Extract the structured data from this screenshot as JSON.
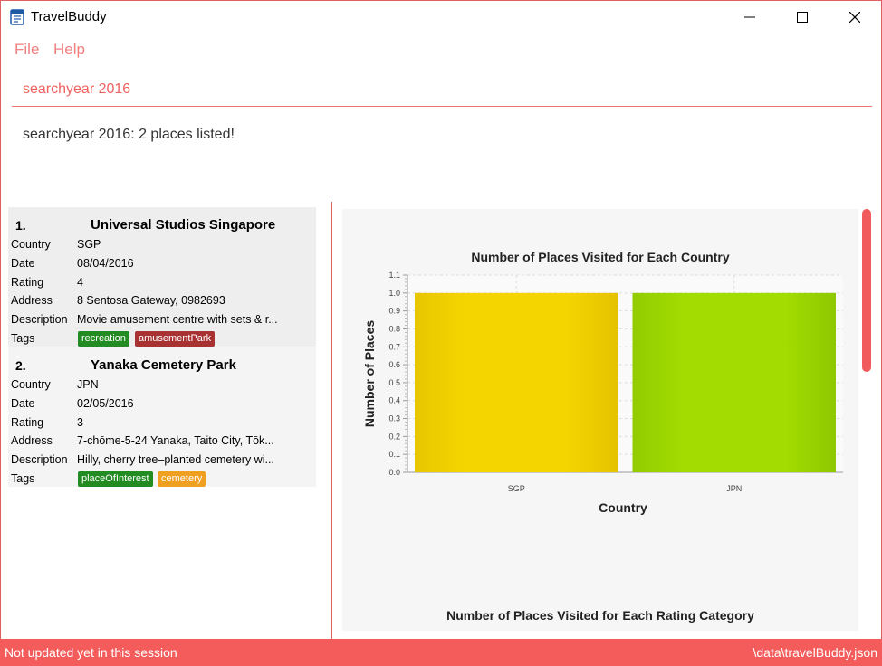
{
  "window": {
    "title": "TravelBuddy"
  },
  "menu": {
    "file": "File",
    "help": "Help"
  },
  "command": {
    "text": "searchyear 2016"
  },
  "result": {
    "text": "searchyear 2016: 2 places listed!"
  },
  "labels": {
    "country": "Country",
    "date": "Date",
    "rating": "Rating",
    "address": "Address",
    "description": "Description",
    "tags": "Tags"
  },
  "places": [
    {
      "index": "1.",
      "name": "Universal Studios Singapore",
      "country": "SGP",
      "date": "08/04/2016",
      "rating": "4",
      "address": "8 Sentosa Gateway, 0982693",
      "description": "Movie amusement centre with sets & r...",
      "tags": [
        {
          "label": "recreation",
          "color": "#228b22"
        },
        {
          "label": "amusementPark",
          "color": "#a83232"
        }
      ]
    },
    {
      "index": "2.",
      "name": "Yanaka Cemetery Park",
      "country": "JPN",
      "date": "02/05/2016",
      "rating": "3",
      "address": "7-chōme-5-24 Yanaka, Taito City, Tōk...",
      "description": "Hilly, cherry tree–planted cemetery wi...",
      "tags": [
        {
          "label": "placeOfInterest",
          "color": "#228b22"
        },
        {
          "label": "cemetery",
          "color": "#f0a020"
        }
      ]
    }
  ],
  "chart_data": [
    {
      "type": "bar",
      "title": "Number of Places Visited for Each Country",
      "xlabel": "Country",
      "ylabel": "Number of Places",
      "categories": [
        "SGP",
        "JPN"
      ],
      "values": [
        1.0,
        1.0
      ],
      "ylim": [
        0,
        1.1
      ],
      "yticks": [
        "0.0",
        "0.1",
        "0.2",
        "0.3",
        "0.4",
        "0.5",
        "0.6",
        "0.7",
        "0.8",
        "0.9",
        "1.0",
        "1.1"
      ],
      "colors": [
        "#f5d200",
        "#9ed600"
      ],
      "grid": true
    },
    {
      "type": "bar",
      "title": "Number of Places Visited for Each Rating Category"
    }
  ],
  "status": {
    "left": "Not updated yet in this session",
    "right": "\\data\\travelBuddy.json"
  }
}
